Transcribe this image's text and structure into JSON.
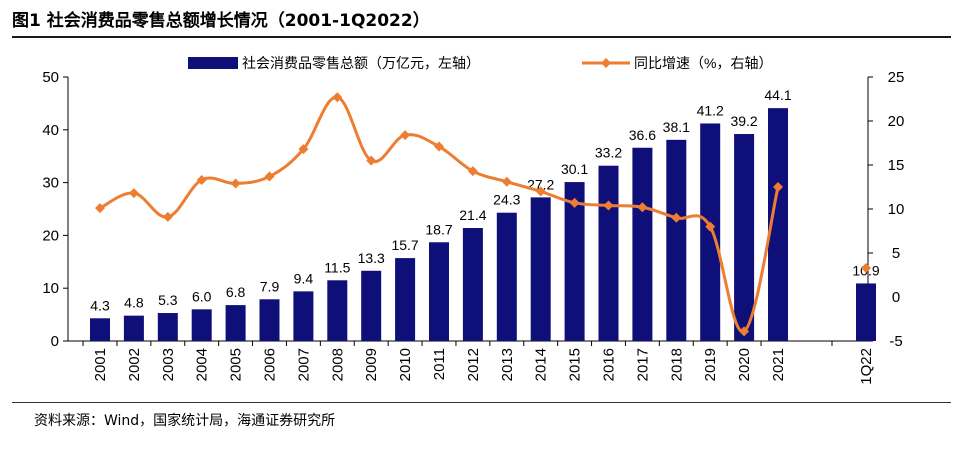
{
  "figure": {
    "title": "图1  社会消费品零售总额增长情况（2001-1Q2022）",
    "source": "资料来源：Wind，国家统计局，海通证券研究所"
  },
  "chart_data": {
    "type": "bar",
    "categories": [
      "2001",
      "2002",
      "2003",
      "2004",
      "2005",
      "2006",
      "2007",
      "2008",
      "2009",
      "2010",
      "2011",
      "2012",
      "2013",
      "2014",
      "2015",
      "2016",
      "2017",
      "2018",
      "2019",
      "2020",
      "2021",
      "1Q22"
    ],
    "series": [
      {
        "name": "社会消费品零售总额（万亿元，左轴）",
        "type": "bar",
        "axis": "left",
        "color": "#0f0f7a",
        "values": [
          4.3,
          4.8,
          5.3,
          6.0,
          6.8,
          7.9,
          9.4,
          11.5,
          13.3,
          15.7,
          18.7,
          21.4,
          24.3,
          27.2,
          30.1,
          33.2,
          36.6,
          38.1,
          41.2,
          39.2,
          44.1,
          10.9
        ],
        "labels": [
          "4.3",
          "4.8",
          "5.3",
          "6.0",
          "6.8",
          "7.9",
          "9.4",
          "11.5",
          "13.3",
          "15.7",
          "18.7",
          "21.4",
          "24.3",
          "27.2",
          "30.1",
          "33.2",
          "36.6",
          "38.1",
          "41.2",
          "39.2",
          "44.1",
          "10.9"
        ]
      },
      {
        "name": "同比增速（%，右轴）",
        "type": "line",
        "axis": "right",
        "color": "#ed7d31",
        "values": [
          10.1,
          11.8,
          9.1,
          13.3,
          12.9,
          13.7,
          16.8,
          22.7,
          15.5,
          18.4,
          17.1,
          14.3,
          13.1,
          12.0,
          10.7,
          10.4,
          10.2,
          9.0,
          8.0,
          -3.9,
          12.5,
          3.3
        ],
        "connected_until": 20
      }
    ],
    "left_axis": {
      "min": 0,
      "max": 50,
      "ticks": [
        "0",
        "10",
        "20",
        "30",
        "40",
        "50"
      ]
    },
    "right_axis": {
      "min": -5,
      "max": 25,
      "ticks": [
        "-5",
        "0",
        "5",
        "10",
        "15",
        "20",
        "25"
      ]
    },
    "grid": false,
    "legend_position": "top"
  }
}
